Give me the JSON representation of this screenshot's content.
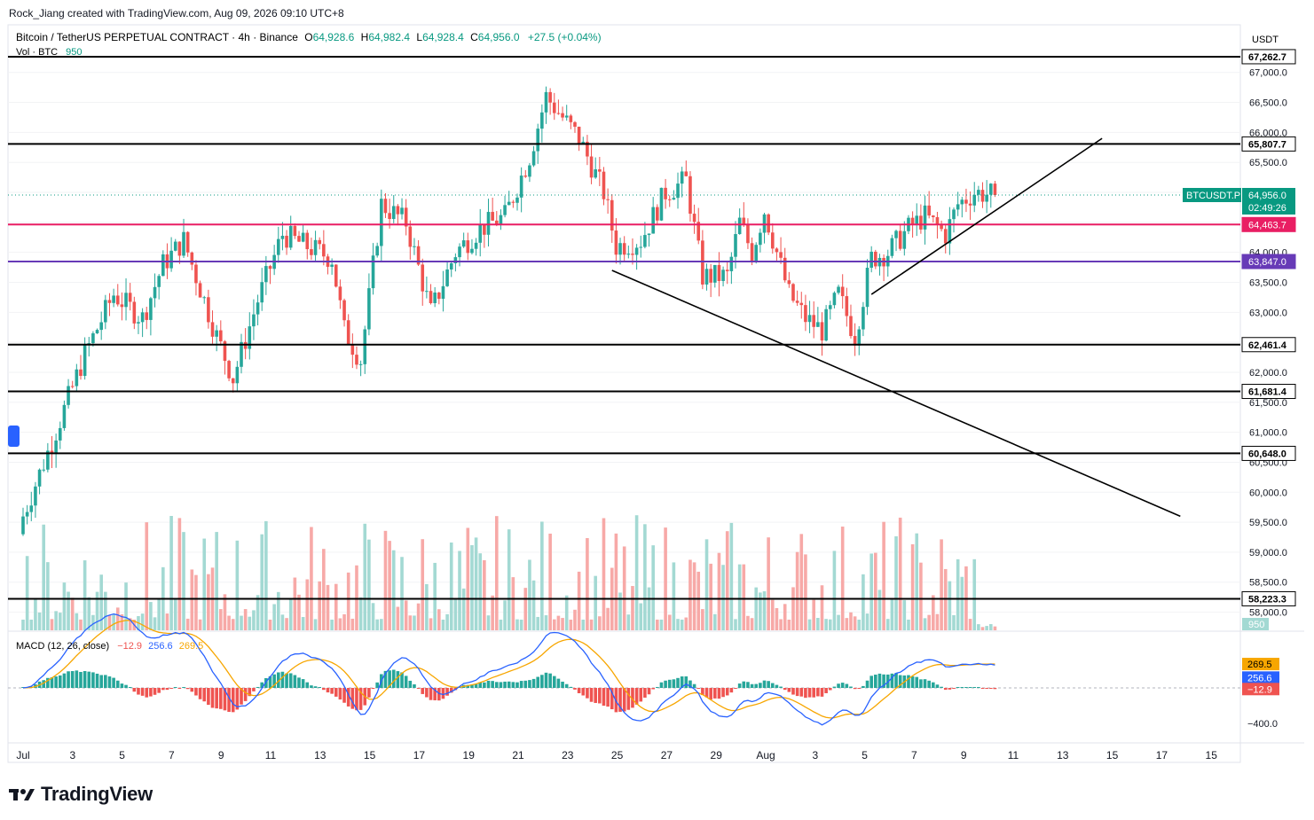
{
  "attribution": "Rock_Jiang created with TradingView.com, Aug 09, 2026 09:10 UTC+8",
  "brand": "TradingView",
  "colors": {
    "up": "#26a69a",
    "down": "#ef5350",
    "volUp": "#a3d9d3",
    "volDown": "#f7a9a7",
    "macd": "#2962ff",
    "signal": "#f7a600",
    "pinkLevel": "#e91e63",
    "purpleLevel": "#673ab7",
    "ticker": "#089981"
  },
  "header": {
    "symbol": "Bitcoin / TetherUS PERPETUAL CONTRACT · 4h · Binance",
    "o_label": "O",
    "o_value": "64,928.6",
    "h_label": "H",
    "h_value": "64,982.4",
    "l_label": "L",
    "l_value": "64,928.4",
    "c_label": "C",
    "c_value": "64,956.0",
    "change": "+27.5 (+0.04%)",
    "vol_label": "Vol · BTC",
    "vol_value": "950"
  },
  "macd_legend": {
    "label": "MACD (12, 26, close)",
    "hist": "−12.9",
    "macd": "256.6",
    "signal": "269.5"
  },
  "chart_data": {
    "type": "candlestick",
    "timeframe": "4h",
    "currency": "USDT",
    "y_range": [
      57900,
      67400
    ],
    "price_ticks": [
      58000,
      58500,
      59000,
      59500,
      60000,
      60500,
      61000,
      61500,
      62000,
      62500,
      63000,
      63500,
      64000,
      64500,
      65000,
      65500,
      66000,
      66500,
      67000
    ],
    "price_tick_labels": [
      "58,000.0",
      "58,500.0",
      "59,000.0",
      "59,500.0",
      "60,000.0",
      "60,500.0",
      "61,000.0",
      "61,500.0",
      "62,000.0",
      "62,500.0",
      "63,000.0",
      "63,500.0",
      "64,000.0",
      "64,500.0",
      "65,000.0",
      "65,500.0",
      "66,000.0",
      "66,500.0",
      "67,000.0"
    ],
    "x_ticks": [
      "Jul",
      "3",
      "5",
      "7",
      "9",
      "11",
      "13",
      "15",
      "17",
      "19",
      "21",
      "23",
      "25",
      "27",
      "29",
      "Aug",
      "3",
      "5",
      "7",
      "9",
      "11",
      "13",
      "15",
      "17",
      "15"
    ],
    "current_price": {
      "label": "BTCUSDT.P",
      "value": "64,956.0",
      "countdown": "02:49:26",
      "price": 64956
    },
    "horizontal_levels": [
      {
        "price": 67262.7,
        "label": "67,262.7",
        "style": "black"
      },
      {
        "price": 65807.7,
        "label": "65,807.7",
        "style": "black"
      },
      {
        "price": 64463.7,
        "label": "64,463.7",
        "style": "pink"
      },
      {
        "price": 63847.0,
        "label": "63,847.0",
        "style": "purple"
      },
      {
        "price": 62461.4,
        "label": "62,461.4",
        "style": "black"
      },
      {
        "price": 61681.4,
        "label": "61,681.4",
        "style": "black"
      },
      {
        "price": 60648.0,
        "label": "60,648.0",
        "style": "black"
      },
      {
        "price": 58223.3,
        "label": "58,223.3",
        "style": "black"
      }
    ],
    "trendlines": [
      {
        "from": [
          "2026-07-24 20:00",
          63700
        ],
        "to": [
          "2026-08-16 20:00",
          59600
        ]
      },
      {
        "from": [
          "2026-08-04 08:00",
          63300
        ],
        "to": [
          "2026-08-13 16:00",
          65900
        ]
      }
    ],
    "anchors": [
      [
        "2026-07-01 00:00",
        59600
      ],
      [
        "2026-07-02 12:00",
        61200
      ],
      [
        "2026-07-03 12:00",
        62300
      ],
      [
        "2026-07-04 16:00",
        63300
      ],
      [
        "2026-07-05 20:00",
        62900
      ],
      [
        "2026-07-06 16:00",
        63800
      ],
      [
        "2026-07-07 12:00",
        64200
      ],
      [
        "2026-07-08 20:00",
        62600
      ],
      [
        "2026-07-09 12:00",
        61900
      ],
      [
        "2026-07-10 12:00",
        63200
      ],
      [
        "2026-07-11 12:00",
        64300
      ],
      [
        "2026-07-12 12:00",
        64100
      ],
      [
        "2026-07-13 12:00",
        63900
      ],
      [
        "2026-07-14 00:00",
        62700
      ],
      [
        "2026-07-14 16:00",
        62200
      ],
      [
        "2026-07-15 12:00",
        64800
      ],
      [
        "2026-07-16 12:00",
        64500
      ],
      [
        "2026-07-17 12:00",
        63000
      ],
      [
        "2026-07-18 12:00",
        64000
      ],
      [
        "2026-07-19 12:00",
        64400
      ],
      [
        "2026-07-20 12:00",
        64600
      ],
      [
        "2026-07-21 12:00",
        65600
      ],
      [
        "2026-07-22 04:00",
        66600
      ],
      [
        "2026-07-23 12:00",
        65900
      ],
      [
        "2026-07-24 12:00",
        65000
      ],
      [
        "2026-07-25 00:00",
        64100
      ],
      [
        "2026-07-26 00:00",
        64200
      ],
      [
        "2026-07-27 00:00",
        65000
      ],
      [
        "2026-07-27 20:00",
        65200
      ],
      [
        "2026-07-28 12:00",
        63600
      ],
      [
        "2026-07-29 12:00",
        63600
      ],
      [
        "2026-07-30 00:00",
        64500
      ],
      [
        "2026-07-30 12:00",
        64000
      ],
      [
        "2026-07-31 00:00",
        64700
      ],
      [
        "2026-08-01 00:00",
        63300
      ],
      [
        "2026-08-01 16:00",
        62900
      ],
      [
        "2026-08-02 08:00",
        62700
      ],
      [
        "2026-08-03 00:00",
        63300
      ],
      [
        "2026-08-03 16:00",
        62600
      ],
      [
        "2026-08-04 08:00",
        63900
      ],
      [
        "2026-08-05 00:00",
        64000
      ],
      [
        "2026-08-05 20:00",
        64400
      ],
      [
        "2026-08-06 12:00",
        64600
      ],
      [
        "2026-08-07 08:00",
        64300
      ],
      [
        "2026-08-07 20:00",
        64800
      ],
      [
        "2026-08-08 12:00",
        65000
      ],
      [
        "2026-08-09 08:00",
        64956
      ]
    ],
    "volume_last": 950,
    "macd_last": 256.6,
    "signal_last": 269.5,
    "hist_last": -12.9,
    "macd_ticks": [
      "−400.0"
    ]
  }
}
